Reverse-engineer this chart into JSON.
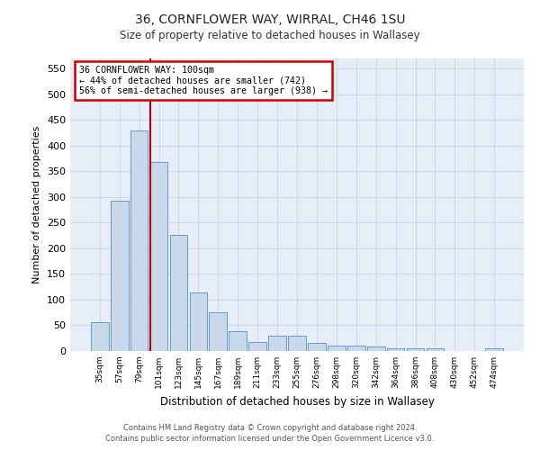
{
  "title": "36, CORNFLOWER WAY, WIRRAL, CH46 1SU",
  "subtitle": "Size of property relative to detached houses in Wallasey",
  "xlabel": "Distribution of detached houses by size in Wallasey",
  "ylabel": "Number of detached properties",
  "bar_labels": [
    "35sqm",
    "57sqm",
    "79sqm",
    "101sqm",
    "123sqm",
    "145sqm",
    "167sqm",
    "189sqm",
    "211sqm",
    "233sqm",
    "255sqm",
    "276sqm",
    "298sqm",
    "320sqm",
    "342sqm",
    "364sqm",
    "386sqm",
    "408sqm",
    "430sqm",
    "452sqm",
    "474sqm"
  ],
  "bar_values": [
    57,
    293,
    430,
    368,
    227,
    114,
    76,
    39,
    18,
    30,
    30,
    16,
    10,
    11,
    8,
    5,
    5,
    5,
    0,
    0,
    5
  ],
  "bar_color": "#c9d9ec",
  "bar_edge_color": "#6699cc",
  "grid_color": "#d0d8e8",
  "background_color": "#e8eef8",
  "property_label": "36 CORNFLOWER WAY: 100sqm",
  "annotation_line1": "← 44% of detached houses are smaller (742)",
  "annotation_line2": "56% of semi-detached houses are larger (938) →",
  "vline_color": "#aa0000",
  "box_color": "#cc0000",
  "ylim": [
    0,
    570
  ],
  "yticks": [
    0,
    50,
    100,
    150,
    200,
    250,
    300,
    350,
    400,
    450,
    500,
    550
  ],
  "footer_line1": "Contains HM Land Registry data © Crown copyright and database right 2024.",
  "footer_line2": "Contains public sector information licensed under the Open Government Licence v3.0."
}
